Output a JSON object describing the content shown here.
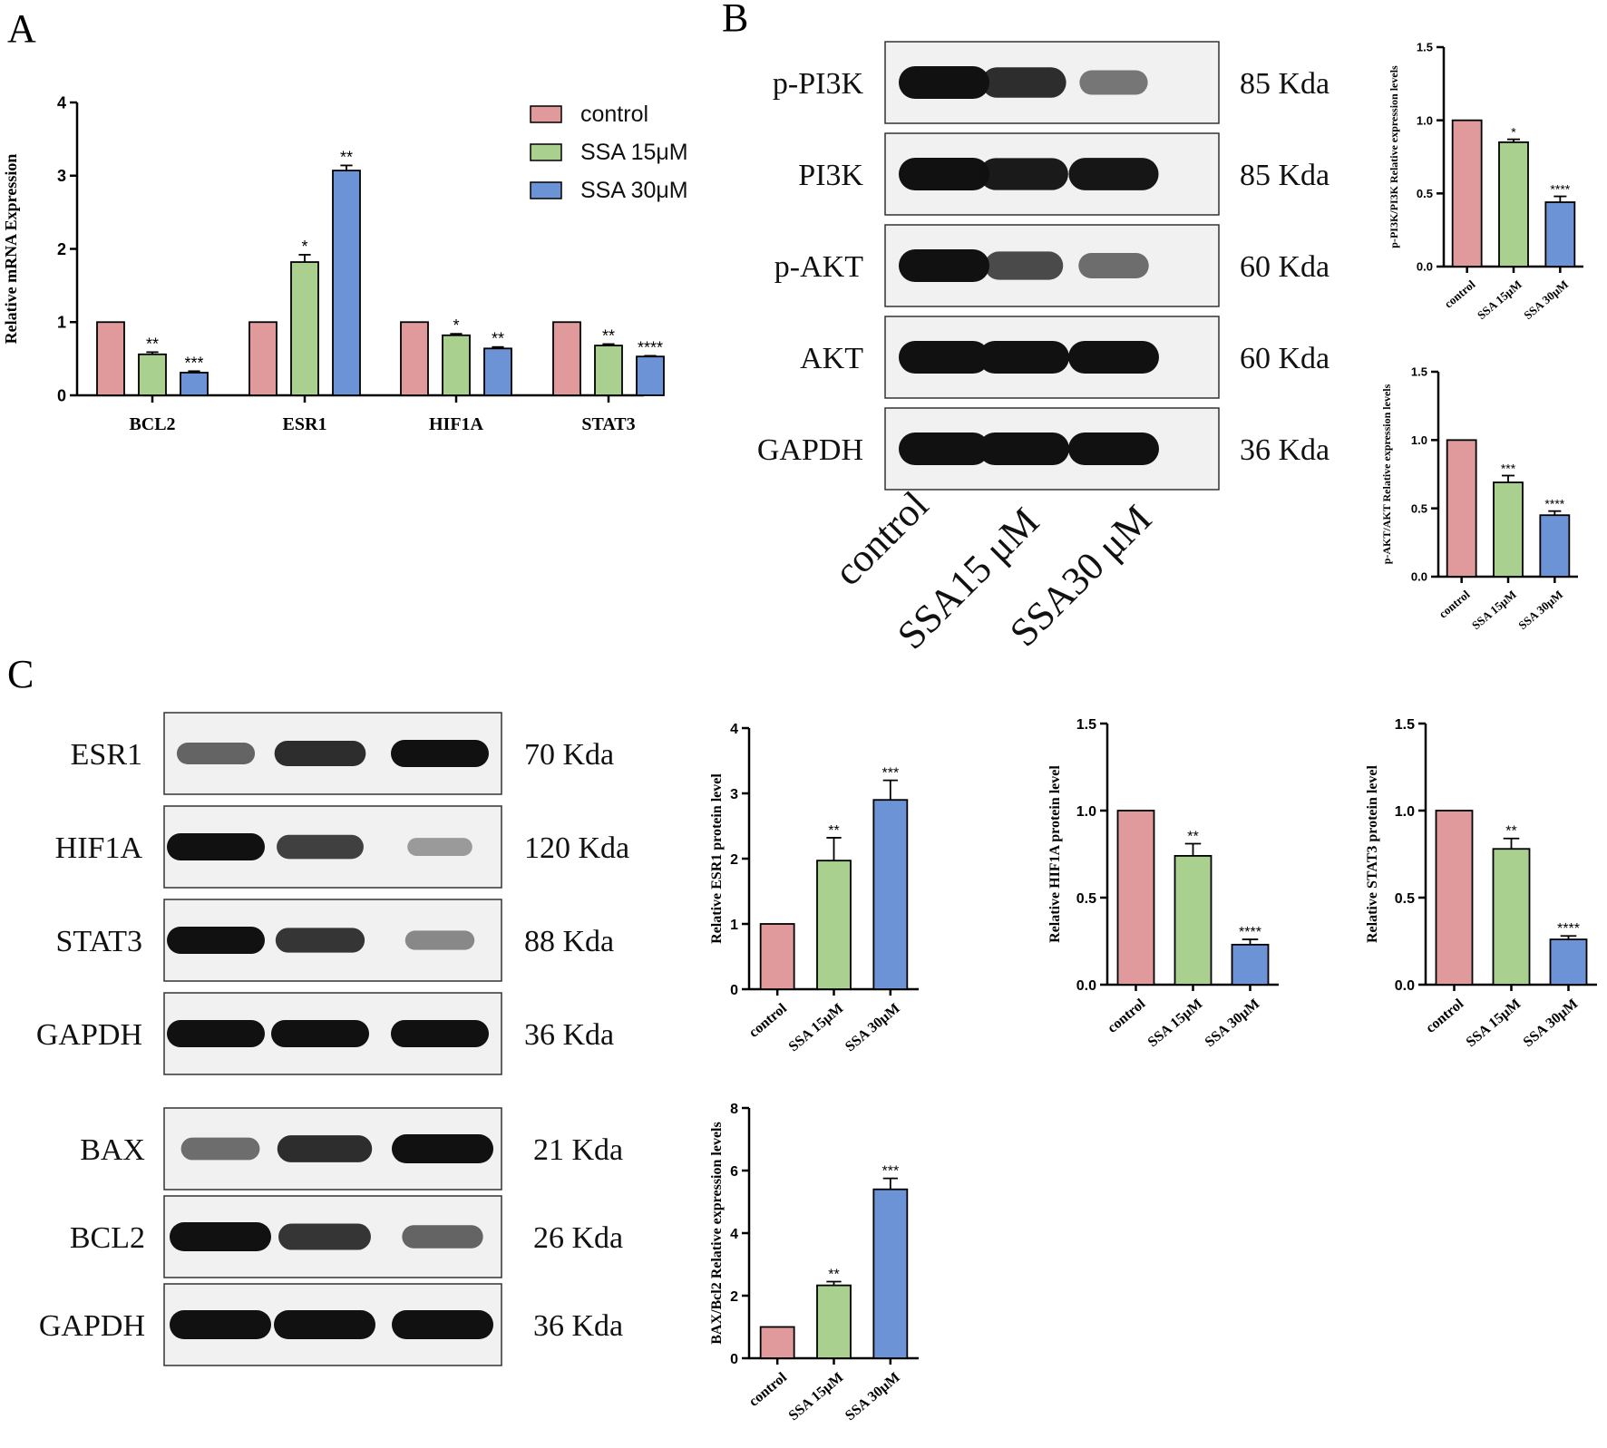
{
  "panels": {
    "A": "A",
    "B": "B",
    "C": "C"
  },
  "colors": {
    "control": "#e09a9c",
    "ssa15": "#a9d08e",
    "ssa30": "#6b93d6",
    "edge": "#000000"
  },
  "legend": {
    "items": [
      "control",
      "SSA 15μM",
      "SSA 30μM"
    ]
  },
  "blot_b": {
    "rows": [
      {
        "label": "p-PI3K",
        "kda": "85 Kda",
        "intensity": [
          1.0,
          0.85,
          0.45
        ]
      },
      {
        "label": "PI3K",
        "kda": "85 Kda",
        "intensity": [
          1.0,
          0.95,
          0.98
        ]
      },
      {
        "label": "p-AKT",
        "kda": "60 Kda",
        "intensity": [
          1.0,
          0.7,
          0.5
        ]
      },
      {
        "label": "AKT",
        "kda": "60 Kda",
        "intensity": [
          1.0,
          1.0,
          1.0
        ]
      },
      {
        "label": "GAPDH",
        "kda": "36 Kda",
        "intensity": [
          1.0,
          1.0,
          1.0
        ]
      }
    ],
    "lanes": [
      "control",
      "SSA15 μM",
      "SSA30 μM"
    ]
  },
  "blot_c1": {
    "rows": [
      {
        "label": "ESR1",
        "kda": "70 Kda",
        "intensity": [
          0.55,
          0.85,
          1.0
        ]
      },
      {
        "label": "HIF1A",
        "kda": "120 Kda",
        "intensity": [
          1.0,
          0.75,
          0.25
        ]
      },
      {
        "label": "STAT3",
        "kda": "88 Kda",
        "intensity": [
          1.0,
          0.8,
          0.35
        ]
      },
      {
        "label": "GAPDH",
        "kda": "36 Kda",
        "intensity": [
          1.0,
          1.0,
          1.0
        ]
      }
    ]
  },
  "blot_c2": {
    "rows": [
      {
        "label": "BAX",
        "kda": "21 Kda",
        "intensity": [
          0.5,
          0.85,
          1.0
        ]
      },
      {
        "label": "BCL2",
        "kda": "26 Kda",
        "intensity": [
          1.0,
          0.8,
          0.55
        ]
      },
      {
        "label": "GAPDH",
        "kda": "36 Kda",
        "intensity": [
          1.0,
          1.0,
          1.0
        ]
      }
    ]
  },
  "chart_data": [
    {
      "id": "A",
      "type": "bar",
      "title": "",
      "xlabel": "",
      "ylabel": "Relative mRNA Expression",
      "ylim": [
        0,
        4
      ],
      "yticks": [
        "0",
        "1",
        "2",
        "3",
        "4"
      ],
      "categories": [
        "BCL2",
        "ESR1",
        "HIF1A",
        "STAT3"
      ],
      "series": [
        {
          "name": "control",
          "values": [
            1.0,
            1.0,
            1.0,
            1.0
          ],
          "errors": [
            0,
            0,
            0,
            0
          ],
          "sig": [
            "",
            "",
            "",
            ""
          ]
        },
        {
          "name": "SSA 15μM",
          "values": [
            0.56,
            1.82,
            0.82,
            0.68
          ],
          "errors": [
            0.03,
            0.1,
            0.02,
            0.02
          ],
          "sig": [
            "**",
            "*",
            "*",
            "**"
          ]
        },
        {
          "name": "SSA 30μM",
          "values": [
            0.31,
            3.07,
            0.64,
            0.53
          ],
          "errors": [
            0.02,
            0.07,
            0.02,
            0.01
          ],
          "sig": [
            "***",
            "**",
            "**",
            "****"
          ]
        }
      ],
      "legend": "top-right"
    },
    {
      "id": "B1",
      "type": "bar",
      "ylabel": "p-PI3K/PI3K Relative expression levels",
      "ylim": [
        0,
        1.5
      ],
      "yticks": [
        "0.0",
        "0.5",
        "1.0",
        "1.5"
      ],
      "categories": [
        "control",
        "SSA 15μM",
        "SSA 30μM"
      ],
      "values": [
        1.0,
        0.85,
        0.44
      ],
      "errors": [
        0,
        0.02,
        0.04
      ],
      "sig": [
        "",
        "*",
        "****"
      ]
    },
    {
      "id": "B2",
      "type": "bar",
      "ylabel": "p-AKT/AKT Relative expression levels",
      "ylim": [
        0,
        1.5
      ],
      "yticks": [
        "0.0",
        "0.5",
        "1.0",
        "1.5"
      ],
      "categories": [
        "control",
        "SSA 15μM",
        "SSA 30μM"
      ],
      "values": [
        1.0,
        0.69,
        0.45
      ],
      "errors": [
        0,
        0.05,
        0.03
      ],
      "sig": [
        "",
        "***",
        "****"
      ]
    },
    {
      "id": "C1",
      "type": "bar",
      "ylabel": "Relative ESR1 protein level",
      "ylim": [
        0,
        4
      ],
      "yticks": [
        "0",
        "1",
        "2",
        "3",
        "4"
      ],
      "categories": [
        "control",
        "SSA 15μM",
        "SSA 30μM"
      ],
      "values": [
        1.0,
        1.97,
        2.9
      ],
      "errors": [
        0,
        0.35,
        0.3
      ],
      "sig": [
        "",
        "**",
        "***"
      ]
    },
    {
      "id": "C2",
      "type": "bar",
      "ylabel": "Relative HIF1A  protein level",
      "ylim": [
        0,
        1.5
      ],
      "yticks": [
        "0.0",
        "0.5",
        "1.0",
        "1.5"
      ],
      "categories": [
        "control",
        "SSA 15μM",
        "SSA 30μM"
      ],
      "values": [
        1.0,
        0.74,
        0.23
      ],
      "errors": [
        0,
        0.07,
        0.03
      ],
      "sig": [
        "",
        "**",
        "****"
      ]
    },
    {
      "id": "C3",
      "type": "bar",
      "ylabel": "Relative STAT3 protein level",
      "ylim": [
        0,
        1.5
      ],
      "yticks": [
        "0.0",
        "0.5",
        "1.0",
        "1.5"
      ],
      "categories": [
        "control",
        "SSA 15μM",
        "SSA 30μM"
      ],
      "values": [
        1.0,
        0.78,
        0.26
      ],
      "errors": [
        0,
        0.06,
        0.02
      ],
      "sig": [
        "",
        "**",
        "****"
      ]
    },
    {
      "id": "C4",
      "type": "bar",
      "ylabel": "BAX/Bcl2 Relative expression levels",
      "ylim": [
        0,
        8
      ],
      "yticks": [
        "0",
        "2",
        "4",
        "6",
        "8"
      ],
      "categories": [
        "control",
        "SSA 15μM",
        "SSA 30μM"
      ],
      "values": [
        1.0,
        2.33,
        5.4
      ],
      "errors": [
        0,
        0.12,
        0.35
      ],
      "sig": [
        "",
        "**",
        "***"
      ]
    }
  ]
}
